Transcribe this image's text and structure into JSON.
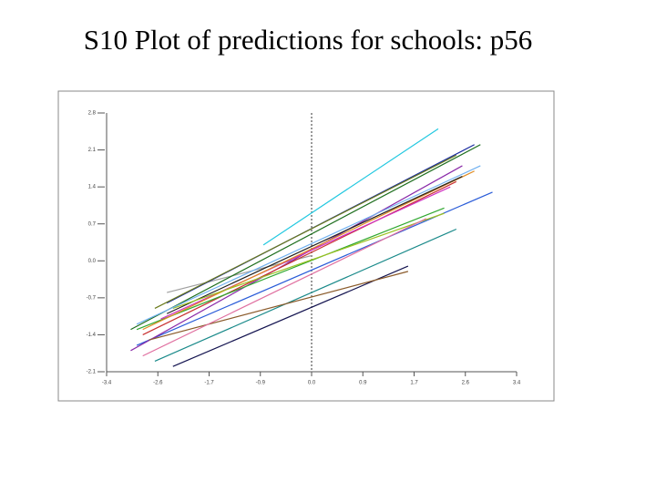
{
  "chart_data": {
    "type": "line",
    "title": "S10 Plot of predictions for schools: p56",
    "xlim": [
      -3.4,
      3.4
    ],
    "xticks": [
      {
        "value": -3.4,
        "label": "-3.4"
      },
      {
        "value": -2.55,
        "label": "-2.6"
      },
      {
        "value": -1.7,
        "label": "-1.7"
      },
      {
        "value": -0.85,
        "label": "-0.9"
      },
      {
        "value": 0,
        "label": "0.0"
      },
      {
        "value": 0.85,
        "label": "0.9"
      },
      {
        "value": 1.7,
        "label": "1.7"
      },
      {
        "value": 2.55,
        "label": "2.6"
      },
      {
        "value": 3.4,
        "label": "3.4"
      }
    ],
    "ylim": [
      -2.1,
      2.8
    ],
    "yticks": [
      -2.1,
      -1.4,
      -0.7,
      {
        "value": 0,
        "label": "0.0"
      },
      0.7,
      1.4,
      2.1,
      2.8
    ],
    "reference_x": 0,
    "series": [
      {
        "color": "#22c8e0",
        "x": [
          -0.8,
          2.1
        ],
        "values": [
          0.3,
          2.5
        ]
      },
      {
        "color": "#a0a0a0",
        "x": [
          -2.4,
          0.0
        ],
        "values": [
          -0.6,
          0.1
        ]
      },
      {
        "color": "#1e6e1e",
        "x": [
          -3.0,
          2.8
        ],
        "values": [
          -1.3,
          2.2
        ]
      },
      {
        "color": "#2a5cd8",
        "x": [
          -2.9,
          3.0
        ],
        "values": [
          -1.6,
          1.3
        ]
      },
      {
        "color": "#141450",
        "x": [
          -2.3,
          1.6
        ],
        "values": [
          -2.0,
          -0.1
        ]
      },
      {
        "color": "#1a8a8a",
        "x": [
          -2.6,
          2.4
        ],
        "values": [
          -1.9,
          0.6
        ]
      },
      {
        "color": "#8a2aa8",
        "x": [
          -3.0,
          2.5
        ],
        "values": [
          -1.7,
          1.8
        ]
      },
      {
        "color": "#c83030",
        "x": [
          -2.8,
          2.4
        ],
        "values": [
          -1.4,
          1.5
        ]
      },
      {
        "color": "#30a830",
        "x": [
          -2.9,
          2.2
        ],
        "values": [
          -1.3,
          1.0
        ]
      },
      {
        "color": "#d030c0",
        "x": [
          -2.5,
          2.3
        ],
        "values": [
          -1.1,
          1.4
        ]
      },
      {
        "color": "#e08a20",
        "x": [
          -2.8,
          2.7
        ],
        "values": [
          -1.3,
          1.7
        ]
      },
      {
        "color": "#202020",
        "x": [
          -2.4,
          2.5
        ],
        "values": [
          -1.0,
          1.6
        ]
      },
      {
        "color": "#9ac020",
        "x": [
          -2.3,
          2.2
        ],
        "values": [
          -0.9,
          0.9
        ]
      },
      {
        "color": "#70b0f0",
        "x": [
          -2.9,
          2.8
        ],
        "values": [
          -1.2,
          1.8
        ]
      },
      {
        "color": "#8a5a2a",
        "x": [
          -2.7,
          1.6
        ],
        "values": [
          -1.5,
          -0.2
        ]
      },
      {
        "color": "#1a2aa0",
        "x": [
          -2.4,
          2.7
        ],
        "values": [
          -0.8,
          2.2
        ]
      },
      {
        "color": "#e070a0",
        "x": [
          -2.8,
          1.9
        ],
        "values": [
          -1.8,
          0.8
        ]
      },
      {
        "color": "#6a7a1a",
        "x": [
          -2.6,
          2.4
        ],
        "values": [
          -0.9,
          2.0
        ]
      }
    ]
  }
}
